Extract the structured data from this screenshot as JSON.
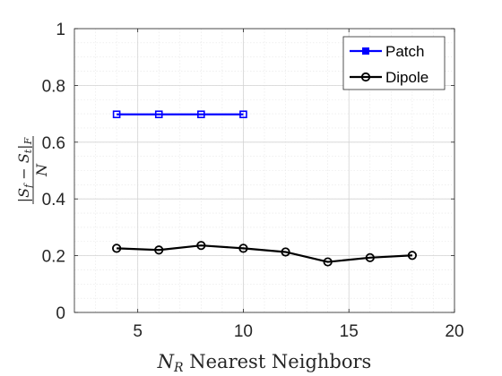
{
  "chart_data": {
    "type": "line",
    "xlabel": {
      "var": "N",
      "sub": "R",
      "text": " Nearest Neighbors"
    },
    "ylabel": {
      "numerator": "|S",
      "sub_f": "f",
      "minus": " − S",
      "sub_t": "t",
      "close": "|",
      "sub_F": "F",
      "denominator": "N"
    },
    "xlim": [
      2,
      20
    ],
    "ylim": [
      0,
      1
    ],
    "xticks": [
      5,
      10,
      15,
      20
    ],
    "yticks": [
      0,
      0.2,
      0.4,
      0.6,
      0.8,
      1
    ],
    "ytick_labels": [
      "0",
      "0.2",
      "0.4",
      "0.6",
      "0.8",
      "1"
    ],
    "grid": true,
    "minor_grid": true,
    "legend_position": "top-right",
    "series": [
      {
        "name": "Patch",
        "color": "#0000ff",
        "marker": "square",
        "x": [
          4,
          6,
          8,
          10
        ],
        "y": [
          0.698,
          0.698,
          0.698,
          0.698
        ]
      },
      {
        "name": "Dipole",
        "color": "#000000",
        "marker": "circle",
        "x": [
          4,
          6,
          8,
          10,
          12,
          14,
          16,
          18
        ],
        "y": [
          0.226,
          0.22,
          0.236,
          0.226,
          0.213,
          0.178,
          0.193,
          0.201
        ]
      }
    ]
  }
}
